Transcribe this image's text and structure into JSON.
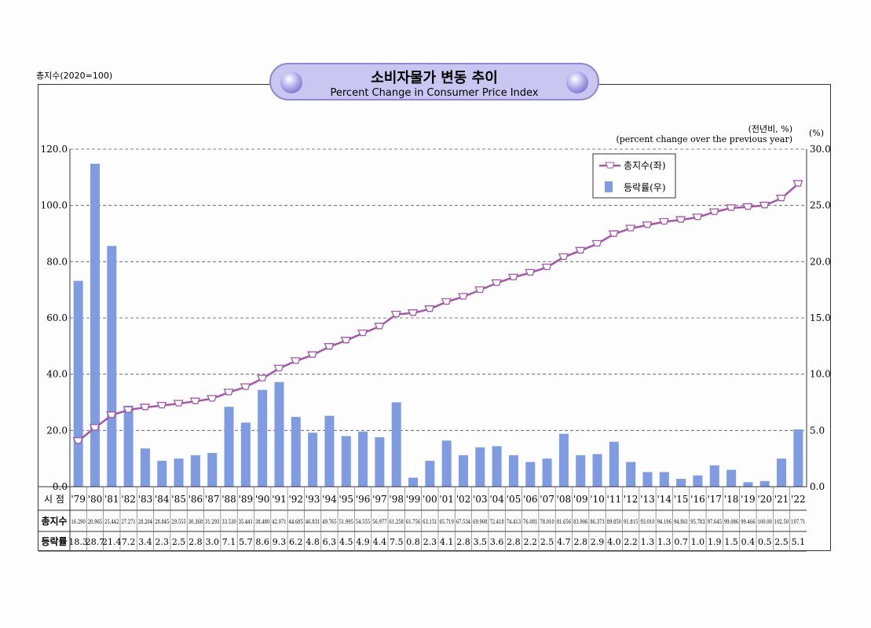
{
  "title_ko": "소비자물가 변동 추이",
  "title_en": "Percent Change in Consumer Price Index",
  "left_axis_note": "총지수(2020=100)",
  "right_axis_note_ko": "(전년비, %)",
  "right_axis_note_en": "(percent change over the previous year)",
  "right_unit": "(%)",
  "table_labels": {
    "year": "시  점",
    "index": "총지수",
    "rate": "등락률"
  },
  "chart_data": {
    "type": "bar+line",
    "categories": [
      "'79",
      "'80",
      "'81",
      "'82",
      "'83",
      "'84",
      "'85",
      "'86",
      "'87",
      "'88",
      "'89",
      "'90",
      "'91",
      "'92",
      "'93",
      "'94",
      "'95",
      "'96",
      "'97",
      "'98",
      "'99",
      "'00",
      "'01",
      "'02",
      "'03",
      "'04",
      "'05",
      "'06",
      "'07",
      "'08",
      "'09",
      "'10",
      "'11",
      "'12",
      "'13",
      "'14",
      "'15",
      "'16",
      "'17",
      "'18",
      "'19",
      "'20",
      "'21",
      "'22"
    ],
    "series": [
      {
        "name": "총지수(좌)",
        "type": "line",
        "axis": "left",
        "color": "#a457a8",
        "values": [
          "16.290",
          "20.965",
          "25.442",
          "27.271",
          "28.204",
          "28.845",
          "29.555",
          "30.368",
          "31.293",
          "33.530",
          "35.441",
          "38.480",
          "42.071",
          "44.685",
          "46.831",
          "49.765",
          "51.995",
          "54.555",
          "56.977",
          "61.258",
          "61.756",
          "63.151",
          "65.719",
          "67.534",
          "69.908",
          "72.418",
          "74.413",
          "76.081",
          "78.010",
          "81.656",
          "83.906",
          "86.373",
          "89.850",
          "91.815",
          "93.010",
          "94.196",
          "94.861",
          "95.783",
          "97.645",
          "99.086",
          "99.466",
          "100.00",
          "102.50",
          "107.71"
        ]
      },
      {
        "name": "등락률(우)",
        "type": "bar",
        "axis": "right",
        "color": "#7f9be2",
        "values": [
          "18.3",
          "28.7",
          "21.4",
          "7.2",
          "3.4",
          "2.3",
          "2.5",
          "2.8",
          "3.0",
          "7.1",
          "5.7",
          "8.6",
          "9.3",
          "6.2",
          "4.8",
          "6.3",
          "4.5",
          "4.9",
          "4.4",
          "7.5",
          "0.8",
          "2.3",
          "4.1",
          "2.8",
          "3.5",
          "3.6",
          "2.8",
          "2.2",
          "2.5",
          "4.7",
          "2.8",
          "2.9",
          "4.0",
          "2.2",
          "1.3",
          "1.3",
          "0.7",
          "1.0",
          "1.9",
          "1.5",
          "0.4",
          "0.5",
          "2.5",
          "5.1"
        ]
      }
    ],
    "left_ylim": [
      0,
      120
    ],
    "left_ticks": [
      "0.0",
      "20.0",
      "40.0",
      "60.0",
      "80.0",
      "100.0",
      "120.0"
    ],
    "right_ylim": [
      0,
      30
    ],
    "right_ticks": [
      "0.0",
      "5.0",
      "10.0",
      "15.0",
      "20.0",
      "25.0",
      "30.0"
    ],
    "grid": "horizontal dashed",
    "legend": "top-right"
  }
}
